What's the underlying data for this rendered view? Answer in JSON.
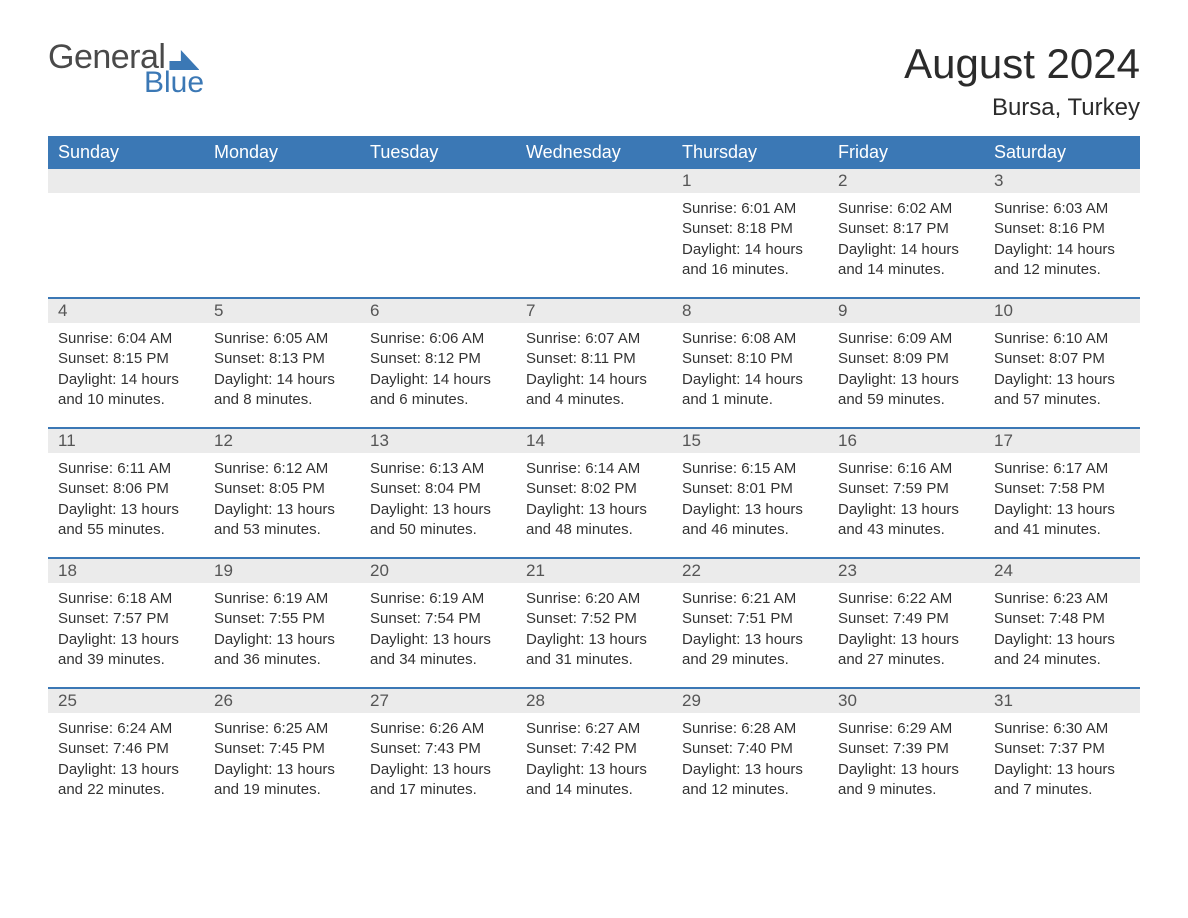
{
  "logo": {
    "text1": "General",
    "text2": "Blue"
  },
  "title": "August 2024",
  "location": "Bursa, Turkey",
  "colors": {
    "brand": "#3b78b5",
    "header_bg": "#3b78b5",
    "header_text": "#ffffff",
    "daynum_bg": "#ebebeb",
    "body_text": "#333333",
    "page_bg": "#ffffff"
  },
  "typography": {
    "title_fontsize": 42,
    "location_fontsize": 24,
    "header_fontsize": 18,
    "daynum_fontsize": 17,
    "body_fontsize": 15
  },
  "layout": {
    "columns": 7,
    "rows": 5,
    "first_day_column_index": 4
  },
  "day_names": [
    "Sunday",
    "Monday",
    "Tuesday",
    "Wednesday",
    "Thursday",
    "Friday",
    "Saturday"
  ],
  "days": [
    {
      "n": "1",
      "sunrise": "Sunrise: 6:01 AM",
      "sunset": "Sunset: 8:18 PM",
      "dl1": "Daylight: 14 hours",
      "dl2": "and 16 minutes."
    },
    {
      "n": "2",
      "sunrise": "Sunrise: 6:02 AM",
      "sunset": "Sunset: 8:17 PM",
      "dl1": "Daylight: 14 hours",
      "dl2": "and 14 minutes."
    },
    {
      "n": "3",
      "sunrise": "Sunrise: 6:03 AM",
      "sunset": "Sunset: 8:16 PM",
      "dl1": "Daylight: 14 hours",
      "dl2": "and 12 minutes."
    },
    {
      "n": "4",
      "sunrise": "Sunrise: 6:04 AM",
      "sunset": "Sunset: 8:15 PM",
      "dl1": "Daylight: 14 hours",
      "dl2": "and 10 minutes."
    },
    {
      "n": "5",
      "sunrise": "Sunrise: 6:05 AM",
      "sunset": "Sunset: 8:13 PM",
      "dl1": "Daylight: 14 hours",
      "dl2": "and 8 minutes."
    },
    {
      "n": "6",
      "sunrise": "Sunrise: 6:06 AM",
      "sunset": "Sunset: 8:12 PM",
      "dl1": "Daylight: 14 hours",
      "dl2": "and 6 minutes."
    },
    {
      "n": "7",
      "sunrise": "Sunrise: 6:07 AM",
      "sunset": "Sunset: 8:11 PM",
      "dl1": "Daylight: 14 hours",
      "dl2": "and 4 minutes."
    },
    {
      "n": "8",
      "sunrise": "Sunrise: 6:08 AM",
      "sunset": "Sunset: 8:10 PM",
      "dl1": "Daylight: 14 hours",
      "dl2": "and 1 minute."
    },
    {
      "n": "9",
      "sunrise": "Sunrise: 6:09 AM",
      "sunset": "Sunset: 8:09 PM",
      "dl1": "Daylight: 13 hours",
      "dl2": "and 59 minutes."
    },
    {
      "n": "10",
      "sunrise": "Sunrise: 6:10 AM",
      "sunset": "Sunset: 8:07 PM",
      "dl1": "Daylight: 13 hours",
      "dl2": "and 57 minutes."
    },
    {
      "n": "11",
      "sunrise": "Sunrise: 6:11 AM",
      "sunset": "Sunset: 8:06 PM",
      "dl1": "Daylight: 13 hours",
      "dl2": "and 55 minutes."
    },
    {
      "n": "12",
      "sunrise": "Sunrise: 6:12 AM",
      "sunset": "Sunset: 8:05 PM",
      "dl1": "Daylight: 13 hours",
      "dl2": "and 53 minutes."
    },
    {
      "n": "13",
      "sunrise": "Sunrise: 6:13 AM",
      "sunset": "Sunset: 8:04 PM",
      "dl1": "Daylight: 13 hours",
      "dl2": "and 50 minutes."
    },
    {
      "n": "14",
      "sunrise": "Sunrise: 6:14 AM",
      "sunset": "Sunset: 8:02 PM",
      "dl1": "Daylight: 13 hours",
      "dl2": "and 48 minutes."
    },
    {
      "n": "15",
      "sunrise": "Sunrise: 6:15 AM",
      "sunset": "Sunset: 8:01 PM",
      "dl1": "Daylight: 13 hours",
      "dl2": "and 46 minutes."
    },
    {
      "n": "16",
      "sunrise": "Sunrise: 6:16 AM",
      "sunset": "Sunset: 7:59 PM",
      "dl1": "Daylight: 13 hours",
      "dl2": "and 43 minutes."
    },
    {
      "n": "17",
      "sunrise": "Sunrise: 6:17 AM",
      "sunset": "Sunset: 7:58 PM",
      "dl1": "Daylight: 13 hours",
      "dl2": "and 41 minutes."
    },
    {
      "n": "18",
      "sunrise": "Sunrise: 6:18 AM",
      "sunset": "Sunset: 7:57 PM",
      "dl1": "Daylight: 13 hours",
      "dl2": "and 39 minutes."
    },
    {
      "n": "19",
      "sunrise": "Sunrise: 6:19 AM",
      "sunset": "Sunset: 7:55 PM",
      "dl1": "Daylight: 13 hours",
      "dl2": "and 36 minutes."
    },
    {
      "n": "20",
      "sunrise": "Sunrise: 6:19 AM",
      "sunset": "Sunset: 7:54 PM",
      "dl1": "Daylight: 13 hours",
      "dl2": "and 34 minutes."
    },
    {
      "n": "21",
      "sunrise": "Sunrise: 6:20 AM",
      "sunset": "Sunset: 7:52 PM",
      "dl1": "Daylight: 13 hours",
      "dl2": "and 31 minutes."
    },
    {
      "n": "22",
      "sunrise": "Sunrise: 6:21 AM",
      "sunset": "Sunset: 7:51 PM",
      "dl1": "Daylight: 13 hours",
      "dl2": "and 29 minutes."
    },
    {
      "n": "23",
      "sunrise": "Sunrise: 6:22 AM",
      "sunset": "Sunset: 7:49 PM",
      "dl1": "Daylight: 13 hours",
      "dl2": "and 27 minutes."
    },
    {
      "n": "24",
      "sunrise": "Sunrise: 6:23 AM",
      "sunset": "Sunset: 7:48 PM",
      "dl1": "Daylight: 13 hours",
      "dl2": "and 24 minutes."
    },
    {
      "n": "25",
      "sunrise": "Sunrise: 6:24 AM",
      "sunset": "Sunset: 7:46 PM",
      "dl1": "Daylight: 13 hours",
      "dl2": "and 22 minutes."
    },
    {
      "n": "26",
      "sunrise": "Sunrise: 6:25 AM",
      "sunset": "Sunset: 7:45 PM",
      "dl1": "Daylight: 13 hours",
      "dl2": "and 19 minutes."
    },
    {
      "n": "27",
      "sunrise": "Sunrise: 6:26 AM",
      "sunset": "Sunset: 7:43 PM",
      "dl1": "Daylight: 13 hours",
      "dl2": "and 17 minutes."
    },
    {
      "n": "28",
      "sunrise": "Sunrise: 6:27 AM",
      "sunset": "Sunset: 7:42 PM",
      "dl1": "Daylight: 13 hours",
      "dl2": "and 14 minutes."
    },
    {
      "n": "29",
      "sunrise": "Sunrise: 6:28 AM",
      "sunset": "Sunset: 7:40 PM",
      "dl1": "Daylight: 13 hours",
      "dl2": "and 12 minutes."
    },
    {
      "n": "30",
      "sunrise": "Sunrise: 6:29 AM",
      "sunset": "Sunset: 7:39 PM",
      "dl1": "Daylight: 13 hours",
      "dl2": "and 9 minutes."
    },
    {
      "n": "31",
      "sunrise": "Sunrise: 6:30 AM",
      "sunset": "Sunset: 7:37 PM",
      "dl1": "Daylight: 13 hours",
      "dl2": "and 7 minutes."
    }
  ]
}
